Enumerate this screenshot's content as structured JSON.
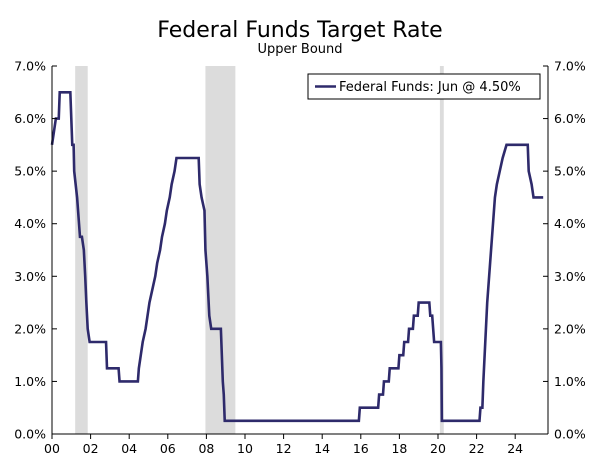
{
  "chart_data": {
    "type": "line",
    "title": "Federal Funds Target Rate",
    "subtitle": "Upper Bound",
    "xlabel": "",
    "ylabel": "",
    "xlim": [
      2000.0,
      2025.7
    ],
    "ylim": [
      0,
      7
    ],
    "x_ticks": [
      {
        "value": 2000,
        "label": "00"
      },
      {
        "value": 2002,
        "label": "02"
      },
      {
        "value": 2004,
        "label": "04"
      },
      {
        "value": 2006,
        "label": "06"
      },
      {
        "value": 2008,
        "label": "08"
      },
      {
        "value": 2010,
        "label": "10"
      },
      {
        "value": 2012,
        "label": "12"
      },
      {
        "value": 2014,
        "label": "14"
      },
      {
        "value": 2016,
        "label": "16"
      },
      {
        "value": 2018,
        "label": "18"
      },
      {
        "value": 2020,
        "label": "20"
      },
      {
        "value": 2022,
        "label": "22"
      },
      {
        "value": 2024,
        "label": "24"
      }
    ],
    "y_ticks": [
      {
        "value": 0,
        "label": "0.0%"
      },
      {
        "value": 1,
        "label": "1.0%"
      },
      {
        "value": 2,
        "label": "2.0%"
      },
      {
        "value": 3,
        "label": "3.0%"
      },
      {
        "value": 4,
        "label": "4.0%"
      },
      {
        "value": 5,
        "label": "5.0%"
      },
      {
        "value": 6,
        "label": "6.0%"
      },
      {
        "value": 7,
        "label": "7.0%"
      }
    ],
    "recessions": [
      {
        "start": 2001.2,
        "end": 2001.85
      },
      {
        "start": 2007.95,
        "end": 2009.5
      },
      {
        "start": 2020.1,
        "end": 2020.3
      }
    ],
    "legend": {
      "position": "top-right",
      "label": "Federal Funds: Jun @ 4.50%"
    },
    "grid": false,
    "colors": {
      "line": "#2e2a6b",
      "recession": "#dcdcdc",
      "axis": "#000000"
    },
    "series": [
      {
        "name": "Federal Funds",
        "points": [
          [
            2000.0,
            5.5
          ],
          [
            2000.1,
            5.75
          ],
          [
            2000.2,
            6.0
          ],
          [
            2000.35,
            6.0
          ],
          [
            2000.4,
            6.5
          ],
          [
            2000.95,
            6.5
          ],
          [
            2001.0,
            6.0
          ],
          [
            2001.05,
            5.5
          ],
          [
            2001.12,
            5.5
          ],
          [
            2001.15,
            5.0
          ],
          [
            2001.3,
            4.5
          ],
          [
            2001.4,
            4.0
          ],
          [
            2001.45,
            3.75
          ],
          [
            2001.55,
            3.75
          ],
          [
            2001.65,
            3.5
          ],
          [
            2001.72,
            3.0
          ],
          [
            2001.78,
            2.5
          ],
          [
            2001.85,
            2.0
          ],
          [
            2001.95,
            1.75
          ],
          [
            2002.8,
            1.75
          ],
          [
            2002.85,
            1.25
          ],
          [
            2003.45,
            1.25
          ],
          [
            2003.5,
            1.0
          ],
          [
            2004.45,
            1.0
          ],
          [
            2004.5,
            1.25
          ],
          [
            2004.6,
            1.5
          ],
          [
            2004.7,
            1.75
          ],
          [
            2004.85,
            2.0
          ],
          [
            2004.95,
            2.25
          ],
          [
            2005.05,
            2.5
          ],
          [
            2005.2,
            2.75
          ],
          [
            2005.35,
            3.0
          ],
          [
            2005.45,
            3.25
          ],
          [
            2005.6,
            3.5
          ],
          [
            2005.7,
            3.75
          ],
          [
            2005.85,
            4.0
          ],
          [
            2005.95,
            4.25
          ],
          [
            2006.1,
            4.5
          ],
          [
            2006.2,
            4.75
          ],
          [
            2006.35,
            5.0
          ],
          [
            2006.45,
            5.25
          ],
          [
            2007.6,
            5.25
          ],
          [
            2007.65,
            4.75
          ],
          [
            2007.75,
            4.5
          ],
          [
            2007.9,
            4.25
          ],
          [
            2007.95,
            3.5
          ],
          [
            2008.05,
            3.0
          ],
          [
            2008.15,
            2.25
          ],
          [
            2008.25,
            2.0
          ],
          [
            2008.75,
            2.0
          ],
          [
            2008.8,
            1.5
          ],
          [
            2008.85,
            1.0
          ],
          [
            2008.9,
            0.75
          ],
          [
            2008.95,
            0.25
          ],
          [
            2015.9,
            0.25
          ],
          [
            2015.95,
            0.5
          ],
          [
            2016.9,
            0.5
          ],
          [
            2016.95,
            0.75
          ],
          [
            2017.15,
            0.75
          ],
          [
            2017.2,
            1.0
          ],
          [
            2017.45,
            1.0
          ],
          [
            2017.5,
            1.25
          ],
          [
            2017.95,
            1.25
          ],
          [
            2018.0,
            1.5
          ],
          [
            2018.2,
            1.5
          ],
          [
            2018.25,
            1.75
          ],
          [
            2018.45,
            1.75
          ],
          [
            2018.5,
            2.0
          ],
          [
            2018.7,
            2.0
          ],
          [
            2018.75,
            2.25
          ],
          [
            2018.95,
            2.25
          ],
          [
            2019.0,
            2.5
          ],
          [
            2019.55,
            2.5
          ],
          [
            2019.6,
            2.25
          ],
          [
            2019.7,
            2.25
          ],
          [
            2019.75,
            2.0
          ],
          [
            2019.8,
            1.75
          ],
          [
            2020.15,
            1.75
          ],
          [
            2020.18,
            1.25
          ],
          [
            2020.2,
            0.25
          ],
          [
            2022.15,
            0.25
          ],
          [
            2022.2,
            0.5
          ],
          [
            2022.3,
            0.5
          ],
          [
            2022.35,
            1.0
          ],
          [
            2022.45,
            1.75
          ],
          [
            2022.55,
            2.5
          ],
          [
            2022.7,
            3.25
          ],
          [
            2022.85,
            4.0
          ],
          [
            2022.95,
            4.5
          ],
          [
            2023.05,
            4.75
          ],
          [
            2023.2,
            5.0
          ],
          [
            2023.35,
            5.25
          ],
          [
            2023.55,
            5.5
          ],
          [
            2024.65,
            5.5
          ],
          [
            2024.7,
            5.0
          ],
          [
            2024.85,
            4.75
          ],
          [
            2024.95,
            4.5
          ],
          [
            2025.45,
            4.5
          ]
        ]
      }
    ]
  }
}
